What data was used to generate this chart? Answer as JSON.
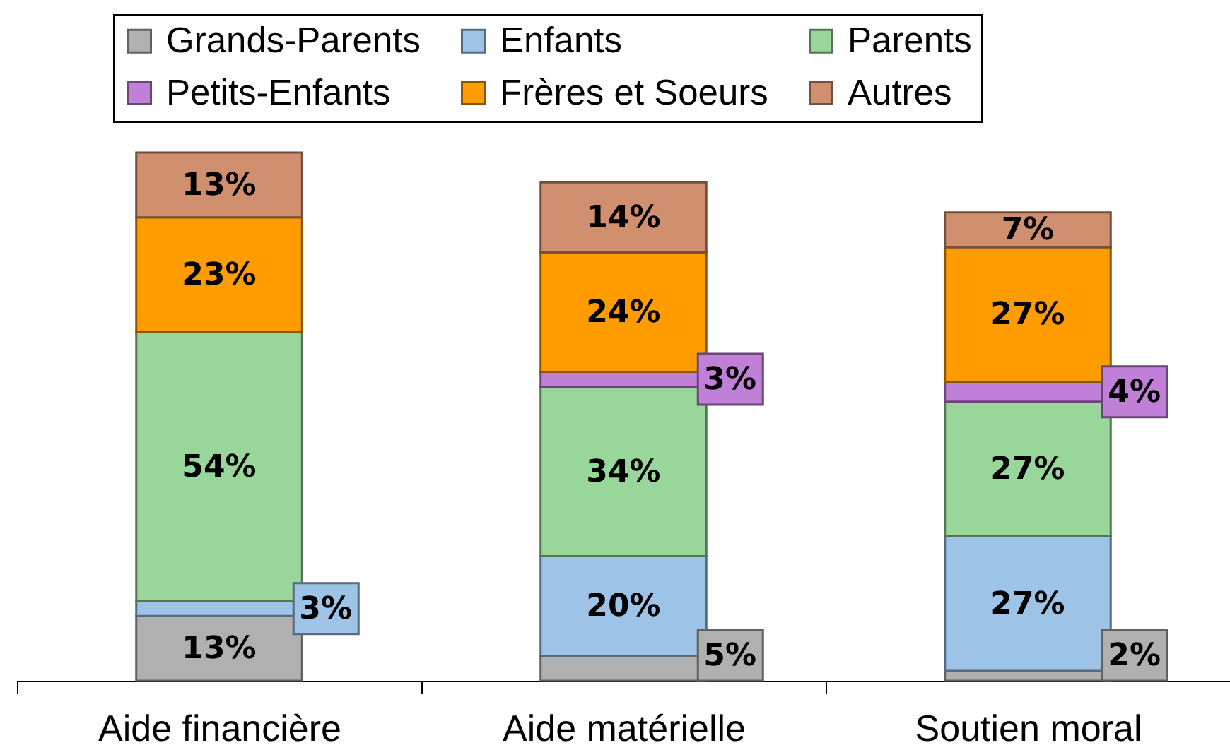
{
  "chart_data": {
    "type": "bar",
    "stacked": true,
    "categories": [
      "Aide financière",
      "Aide matérielle",
      "Soutien moral"
    ],
    "series": [
      {
        "name": "Grands-Parents",
        "color": "#b0b0b0",
        "values": [
          13,
          5,
          2
        ],
        "value_labels": [
          "13%",
          "5%",
          "2%"
        ]
      },
      {
        "name": "Enfants",
        "color": "#9dc3e6",
        "values": [
          3,
          20,
          27
        ],
        "value_labels": [
          "3%",
          "20%",
          "27%"
        ]
      },
      {
        "name": "Parents",
        "color": "#99d699",
        "values": [
          54,
          34,
          27
        ],
        "value_labels": [
          "54%",
          "34%",
          "27%"
        ]
      },
      {
        "name": "Petits-Enfants",
        "color": "#c080d8",
        "values": [
          null,
          3,
          4
        ],
        "value_labels": [
          null,
          "3%",
          "4%"
        ]
      },
      {
        "name": "Frères et Soeurs",
        "color": "#ff9c00",
        "values": [
          23,
          24,
          27
        ],
        "value_labels": [
          "23%",
          "24%",
          "27%"
        ]
      },
      {
        "name": "Autres",
        "color": "#d09070",
        "values": [
          13,
          14,
          7
        ],
        "value_labels": [
          "13%",
          "14%",
          "7%"
        ]
      }
    ],
    "legend": "top",
    "tick_labels": "x"
  }
}
